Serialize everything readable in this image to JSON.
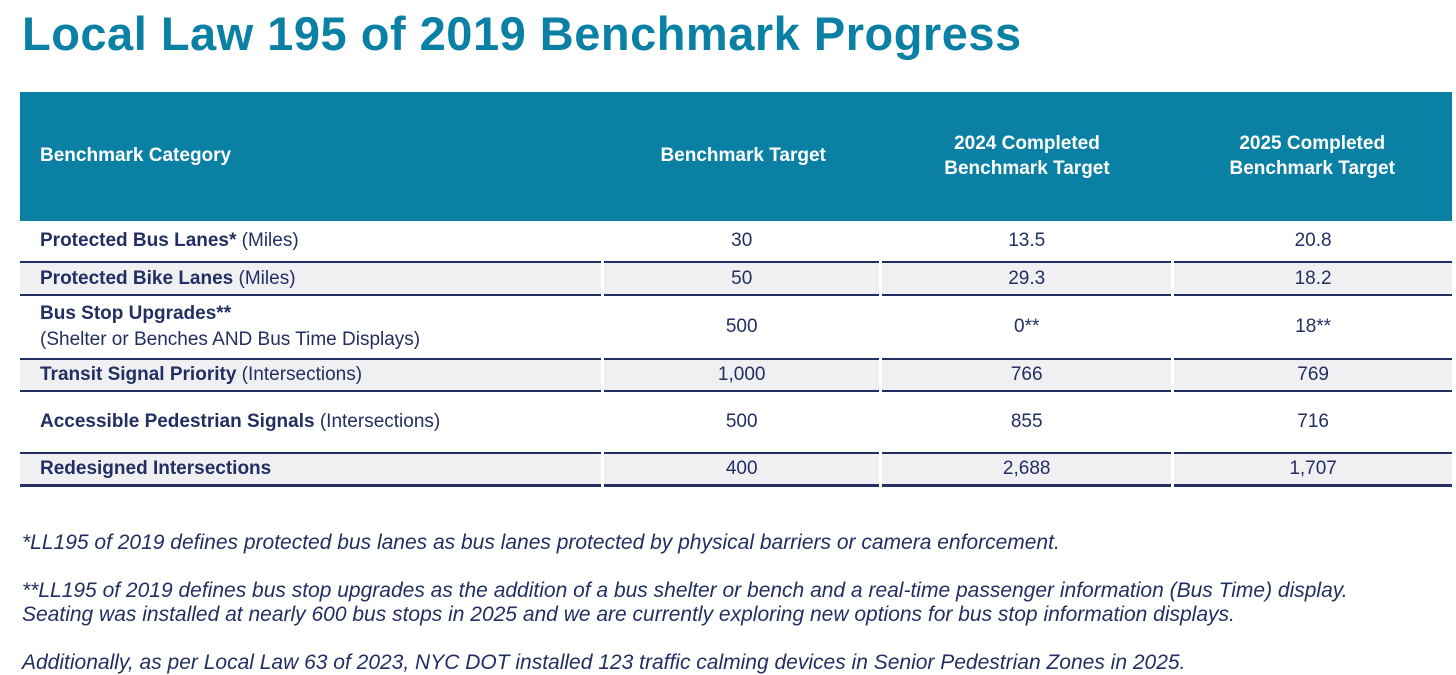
{
  "page": {
    "title": "Local Law 195 of 2019 Benchmark Progress"
  },
  "colors": {
    "accent_teal": "#0a80a5",
    "text_navy": "#232e62",
    "row_alt_gray": "#f0f0f3",
    "header_text": "#ffffff"
  },
  "table": {
    "headers": [
      "Benchmark Category",
      "Benchmark Target",
      "2024 Completed Benchmark Target",
      "2025 Completed Benchmark Target"
    ],
    "rows": [
      {
        "name": "Protected Bus Lanes*",
        "unit": " (Miles)",
        "sub": "",
        "target": "30",
        "completed_2024": "13.5",
        "completed_2025": "20.8"
      },
      {
        "name": "Protected Bike Lanes",
        "unit": " (Miles)",
        "sub": "",
        "target": "50",
        "completed_2024": "29.3",
        "completed_2025": "18.2"
      },
      {
        "name": "Bus Stop Upgrades**",
        "unit": "",
        "sub": "(Shelter or Benches AND Bus Time Displays)",
        "target": "500",
        "completed_2024": "0**",
        "completed_2025": "18**"
      },
      {
        "name": "Transit Signal Priority",
        "unit": " (Intersections)",
        "sub": "",
        "target": "1,000",
        "completed_2024": "766",
        "completed_2025": "769"
      },
      {
        "name": "Accessible Pedestrian Signals",
        "unit": " (Intersections)",
        "sub": "",
        "target": "500",
        "completed_2024": "855",
        "completed_2025": "716"
      },
      {
        "name": "Redesigned Intersections",
        "unit": "",
        "sub": "",
        "target": "400",
        "completed_2024": "2,688",
        "completed_2025": "1,707"
      }
    ]
  },
  "footnotes": [
    {
      "lines": [
        "*LL195 of 2019 defines protected bus lanes as bus lanes protected by physical barriers or camera enforcement."
      ]
    },
    {
      "lines": [
        "**LL195 of 2019 defines bus stop upgrades as the addition of a bus shelter or bench and a real-time passenger information (Bus Time) display.",
        "Seating was installed at nearly 600 bus stops in 2025 and we are currently exploring new options for bus stop information displays."
      ]
    },
    {
      "lines": [
        "Additionally, as per Local Law 63 of 2023, NYC DOT installed 123 traffic calming devices in Senior Pedestrian Zones in 2025."
      ]
    }
  ]
}
